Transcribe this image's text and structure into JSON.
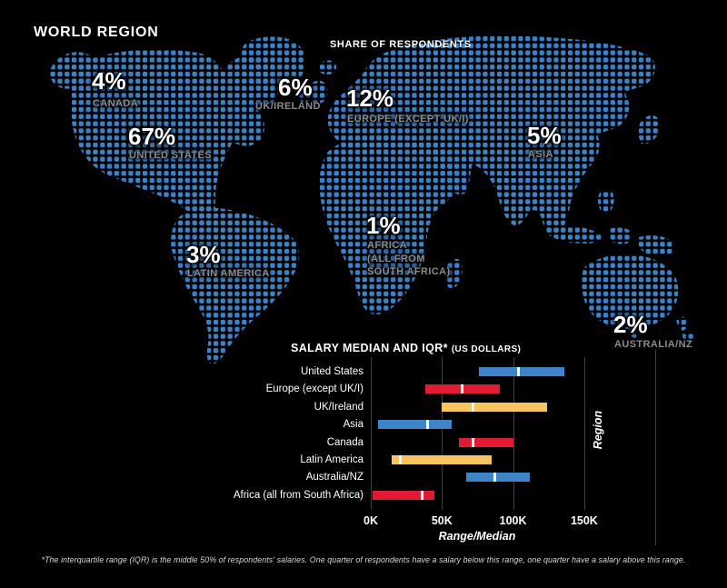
{
  "header": {
    "title": "WORLD REGION"
  },
  "map": {
    "subtitle": "SHARE OF RESPONDENTS",
    "regions": [
      {
        "id": "canada",
        "pct": "4%",
        "name": "CANADA"
      },
      {
        "id": "united-states",
        "pct": "67%",
        "name": "UNITED STATES"
      },
      {
        "id": "uk-ireland",
        "pct": "6%",
        "name": "UK/IRELAND"
      },
      {
        "id": "europe",
        "pct": "12%",
        "name": "EUROPE (EXCEPT UK/I)"
      },
      {
        "id": "asia",
        "pct": "5%",
        "name": "ASIA"
      },
      {
        "id": "latin-america",
        "pct": "3%",
        "name": "LATIN AMERICA"
      },
      {
        "id": "africa",
        "pct": "1%",
        "name": "AFRICA\n(ALL FROM\nSOUTH AFRICA)"
      },
      {
        "id": "australia-nz",
        "pct": "2%",
        "name": "AUSTRALIA/NZ"
      }
    ]
  },
  "chart_data": {
    "type": "bar",
    "subtype": "horizontal-range-bars-with-median",
    "title": "SALARY MEDIAN AND IQR*",
    "title_suffix": "(US DOLLARS)",
    "xlabel": "Range/Median",
    "ylabel": "Region",
    "unit": "thousand US dollars",
    "xlim": [
      0,
      200
    ],
    "x_ticks": [
      "0K",
      "50K",
      "100K",
      "150K"
    ],
    "x_tick_values": [
      0,
      50,
      100,
      150
    ],
    "categories": [
      "United States",
      "Europe (except UK/I)",
      "UK/Ireland",
      "Asia",
      "Canada",
      "Latin America",
      "Australia/NZ",
      "Africa (all from South Africa)"
    ],
    "series": [
      {
        "region": "United States",
        "q1": 76,
        "median": 104,
        "q3": 136,
        "color": "blue"
      },
      {
        "region": "Europe (except UK/I)",
        "q1": 38,
        "median": 64,
        "q3": 91,
        "color": "red"
      },
      {
        "region": "UK/Ireland",
        "q1": 50,
        "median": 72,
        "q3": 124,
        "color": "yellow"
      },
      {
        "region": "Asia",
        "q1": 5,
        "median": 40,
        "q3": 57,
        "color": "blue"
      },
      {
        "region": "Canada",
        "q1": 62,
        "median": 72,
        "q3": 100,
        "color": "red"
      },
      {
        "region": "Latin America",
        "q1": 15,
        "median": 21,
        "q3": 85,
        "color": "yellow"
      },
      {
        "region": "Australia/NZ",
        "q1": 67,
        "median": 87,
        "q3": 112,
        "color": "blue"
      },
      {
        "region": "Africa (all from South Africa)",
        "q1": 1,
        "median": 36,
        "q3": 45,
        "color": "red"
      }
    ],
    "legend": null,
    "grid": "vertical-gridlines-on"
  },
  "colors": {
    "background": "#000000",
    "map_dot_blue": "#3b83c9",
    "blue": "#3d85c8",
    "red": "#e11b33",
    "yellow": "#f9c45c",
    "grid": "#3f3f3f",
    "muted_label": "#8a8a8a",
    "text": "#ffffff"
  },
  "footnote": "*The interquartile range (IQR) is the middle 50% of respondents' salaries.  One quarter of respondents have a salary below this range, one quarter have a salary above this range."
}
